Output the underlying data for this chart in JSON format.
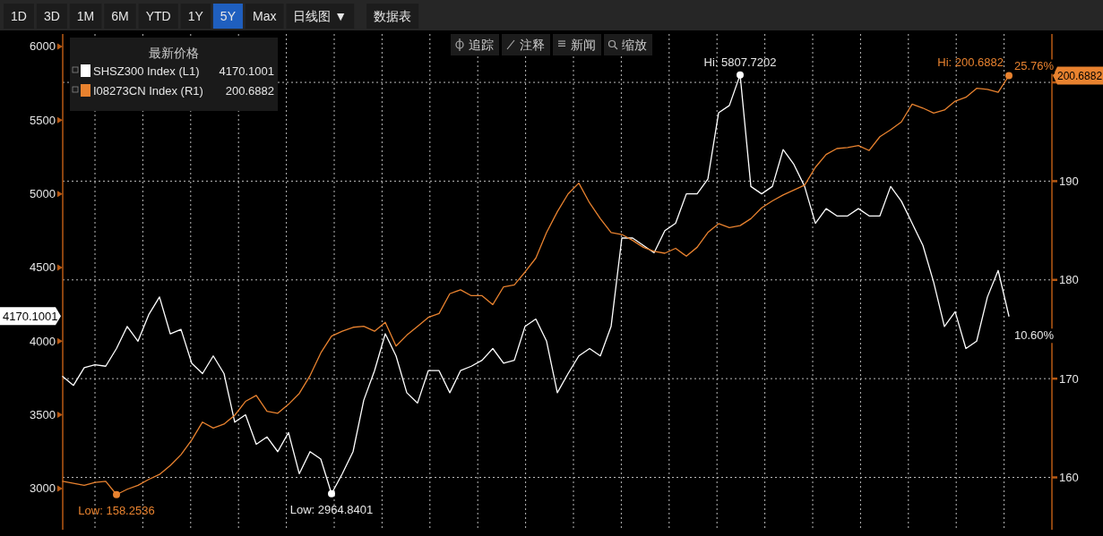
{
  "chart_data": {
    "type": "line",
    "categories": [
      null,
      null,
      null,
      null,
      null,
      null,
      null,
      null,
      null,
      null,
      null,
      null,
      null,
      null,
      null,
      null,
      null,
      null,
      null,
      null,
      null,
      null,
      null,
      null,
      null,
      null,
      null,
      null,
      null,
      null,
      null,
      null,
      null,
      null,
      null,
      null,
      null,
      null,
      null,
      null,
      null,
      null,
      null,
      null,
      null,
      null,
      null,
      null,
      null,
      null,
      null,
      null,
      null,
      null,
      null,
      null,
      null,
      null,
      null,
      null,
      null,
      null,
      null,
      null,
      null,
      null,
      null,
      null,
      null,
      null,
      null,
      null,
      null,
      null,
      null,
      null,
      null,
      null,
      null,
      null,
      null,
      null,
      null,
      null,
      null,
      null,
      null,
      null,
      null
    ],
    "series": [
      {
        "name": "SHSZ300 Index (L1)",
        "color": "#ffffff",
        "values": [
          3760,
          3700,
          3820,
          3840,
          3830,
          3950,
          4100,
          4000,
          4180,
          4300,
          4050,
          4080,
          3850,
          3780,
          3900,
          3780,
          3450,
          3500,
          3300,
          3350,
          3250,
          3380,
          3100,
          3250,
          3200,
          2964.8401,
          3100,
          3250,
          3600,
          3800,
          4050,
          3900,
          3650,
          3580,
          3800,
          3800,
          3650,
          3800,
          3830,
          3870,
          3950,
          3850,
          3870,
          4100,
          4150,
          4000,
          3650,
          3780,
          3900,
          3950,
          3900,
          4100,
          4700,
          4700,
          4650,
          4600,
          4750,
          4800,
          5000,
          5000,
          5100,
          5550,
          5600,
          5807.7202,
          5050,
          5000,
          5050,
          5300,
          5200,
          5050,
          4800,
          4900,
          4850,
          4850,
          4900,
          4850,
          4850,
          5050,
          4950,
          4800,
          4650,
          4400,
          4100,
          4200,
          3950,
          4000,
          4300,
          4480,
          4170.1001
        ]
      },
      {
        "name": "I08273CN Index (R1)",
        "color": "#e8822f",
        "axis": "y2",
        "values": [
          159.6,
          159.4,
          159.2,
          159.5,
          159.6,
          158.2536,
          158.8,
          159.2,
          159.8,
          160.3,
          161.2,
          162.3,
          163.8,
          165.6,
          165.0,
          165.4,
          166.3,
          167.7,
          168.3,
          166.7,
          166.5,
          167.4,
          168.5,
          170.3,
          172.6,
          174.3,
          174.8,
          175.2,
          175.3,
          174.8,
          175.7,
          173.3,
          174.4,
          175.3,
          176.2,
          176.6,
          178.6,
          179.0,
          178.4,
          178.4,
          177.5,
          179.3,
          179.5,
          180.8,
          182.2,
          184.8,
          186.9,
          188.7,
          189.8,
          187.8,
          186.2,
          184.8,
          184.6,
          184.0,
          183.3,
          182.9,
          182.7,
          183.2,
          182.4,
          183.3,
          184.8,
          185.7,
          185.3,
          185.5,
          186.2,
          187.3,
          188.0,
          188.6,
          189.1,
          189.6,
          191.4,
          192.7,
          193.3,
          193.4,
          193.6,
          193.1,
          194.5,
          195.2,
          196.0,
          197.8,
          197.4,
          196.9,
          197.2,
          198.1,
          198.5,
          199.4,
          199.3,
          199.0,
          200.6882
        ]
      }
    ],
    "ylim": [
      2720,
      6085
    ],
    "yticks": [
      3000,
      3500,
      4000,
      4500,
      5000,
      5500,
      6000
    ],
    "y2lim": [
      154.7,
      204.9
    ],
    "y2ticks": [
      160,
      170,
      180,
      190,
      {
        "value": 200,
        "label": null
      }
    ],
    "grid": true,
    "legend": "top left",
    "legend_title": "最新价格",
    "annotations": [
      "10.60%",
      "25.76%",
      {
        "text": "Hi: 5807.7202",
        "y": 5807.7202
      },
      {
        "text": "Low: 2964.8401",
        "y": 2964.8401
      },
      "Hi: 200.6882",
      "Low: 158.2536",
      "4170.1001",
      "200.6882",
      "4170.1001",
      "200.6882",
      "1D",
      "3D",
      "1M",
      "6M",
      "YTD",
      "1Y",
      "5Y",
      "Max",
      "日线图 ▼",
      "数据表",
      "追踪",
      "注释",
      "新闻",
      "缩放"
    ]
  }
}
